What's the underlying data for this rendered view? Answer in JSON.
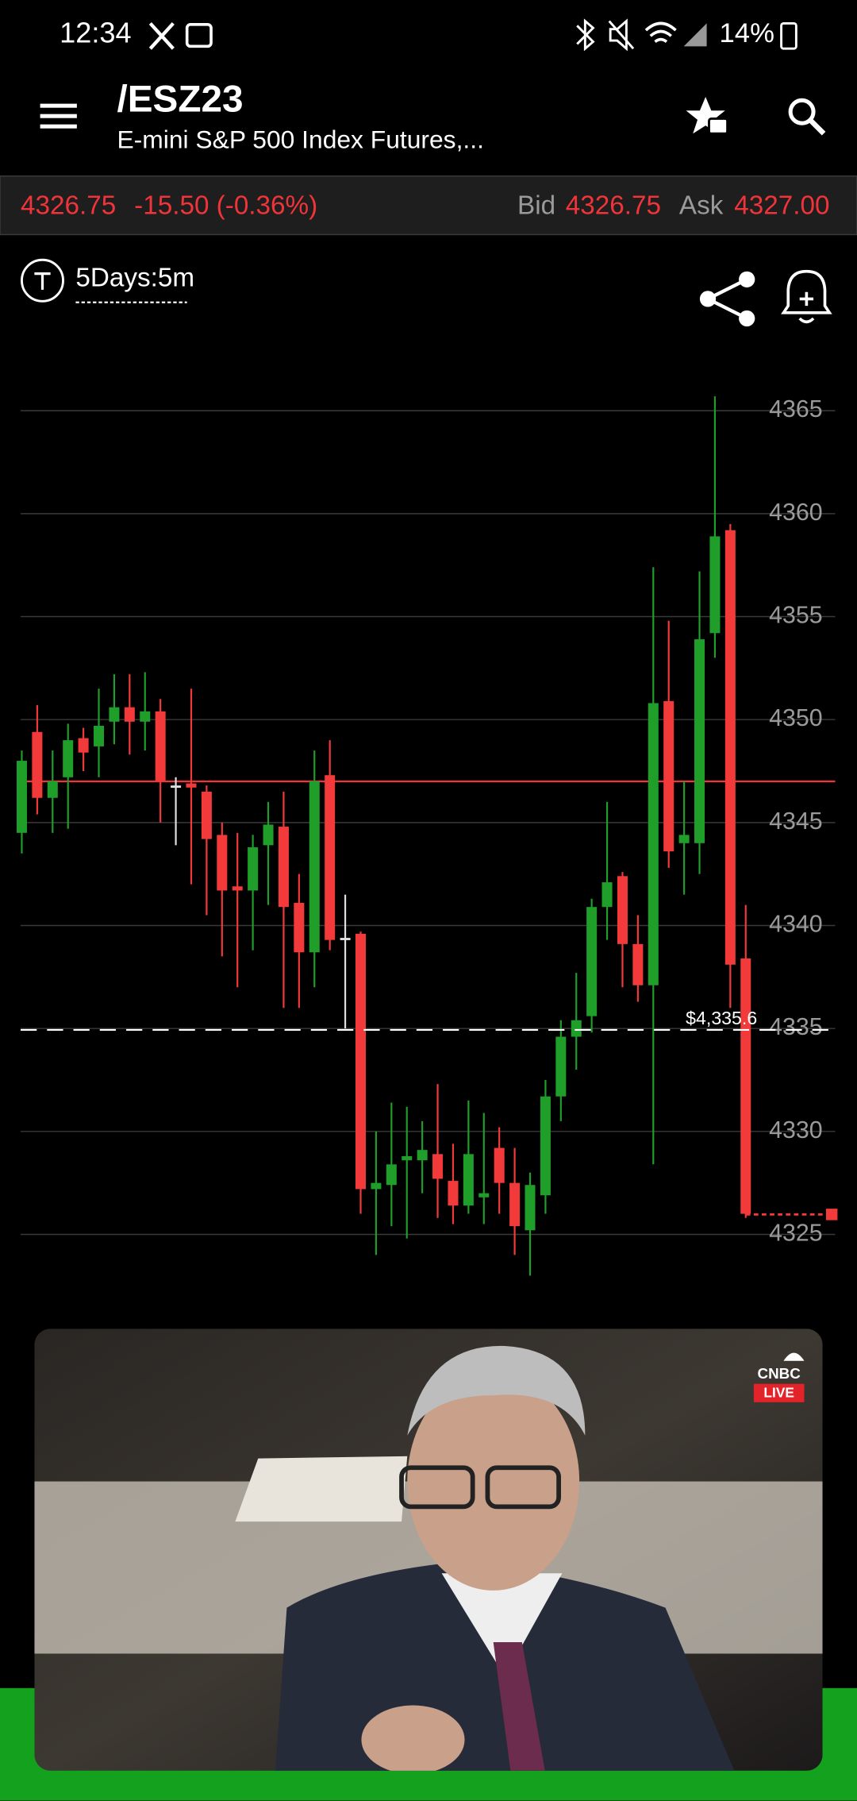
{
  "status_bar": {
    "time": "12:34",
    "battery": "14%"
  },
  "header": {
    "symbol": "/ESZ23",
    "name": "E-mini S&P 500 Index Futures,..."
  },
  "quote": {
    "last": "4326.75",
    "change": "-15.50 (-0.36%)",
    "bid_label": "Bid",
    "bid": "4326.75",
    "ask_label": "Ask",
    "ask": "4327.00"
  },
  "timeframe": "5Days:5m",
  "chart_data": {
    "type": "candlestick",
    "ylim": [
      4318.3,
      4368.2
    ],
    "yticks": [
      4325,
      4330,
      4335,
      4340,
      4345,
      4350,
      4355,
      4360,
      4365
    ],
    "grid": true,
    "up_color": "#1f9e2a",
    "down_color": "#f23a3a",
    "doji_color": "#e0e0e0",
    "open": [
      4344.5,
      4349.4,
      4346.2,
      4347.2,
      4349.1,
      4348.7,
      4349.9,
      4350.6,
      4349.9,
      4350.4,
      4346.8,
      4346.9,
      4346.5,
      4344.4,
      4341.9,
      4341.7,
      4343.9,
      4344.8,
      4341.1,
      4338.7,
      4347.3,
      4339.4,
      4339.6,
      4327.2,
      4327.4,
      4328.6,
      4328.6,
      4328.9,
      4327.6,
      4326.4,
      4326.8,
      4329.2,
      4327.5,
      4325.2,
      4326.9,
      4331.7,
      4334.6,
      4335.6,
      4340.9,
      4342.4,
      4339.1,
      4337.1,
      4350.9,
      4344.0,
      4344.0,
      4354.2,
      4359.2,
      4338.4
    ],
    "high": [
      4348.5,
      4350.7,
      4348.5,
      4349.8,
      4349.6,
      4351.5,
      4352.2,
      4352.2,
      4352.3,
      4351.0,
      4347.2,
      4351.5,
      4346.8,
      4345,
      4344.5,
      4344.4,
      4346,
      4346.5,
      4342.5,
      4348.5,
      4349.0,
      4341.5,
      4339.7,
      4330,
      4331.4,
      4331.2,
      4330.5,
      4332.3,
      4329.4,
      4331.5,
      4330.9,
      4330.2,
      4329.2,
      4328,
      4332.5,
      4335.4,
      4337.7,
      4341.3,
      4346,
      4342.6,
      4340.5,
      4357.4,
      4354.8,
      4347,
      4357.2,
      4365.7,
      4359.5,
      4341.0
    ],
    "low": [
      4343.5,
      4345.4,
      4344.5,
      4344.7,
      4347.5,
      4347.2,
      4348.8,
      4348.3,
      4348.5,
      4345.0,
      4343.9,
      4342,
      4340.5,
      4338.5,
      4337,
      4338.8,
      4341,
      4336,
      4336,
      4337,
      4338.8,
      4335.0,
      4326,
      4324,
      4325.4,
      4324.8,
      4327,
      4325.8,
      4325.5,
      4326,
      4325.5,
      4326,
      4324,
      4323,
      4326,
      4330.5,
      4333,
      4334.8,
      4339.3,
      4337,
      4336.3,
      4328.4,
      4342.8,
      4341.5,
      4342.5,
      4353,
      4336,
      4325.8
    ],
    "close": [
      4348,
      4346.2,
      4347.0,
      4349.0,
      4348.4,
      4349.7,
      4350.6,
      4349.9,
      4350.4,
      4347.0,
      4346.8,
      4346.7,
      4344.2,
      4341.7,
      4341.7,
      4343.8,
      4344.9,
      4340.9,
      4338.7,
      4347.0,
      4339.3,
      4339.4,
      4327.2,
      4327.5,
      4328.4,
      4328.8,
      4329.1,
      4327.7,
      4326.4,
      4328.9,
      4327.0,
      4327.5,
      4325.4,
      4327.4,
      4331.7,
      4334.6,
      4335.4,
      4340.9,
      4342.1,
      4339.1,
      4337.1,
      4350.8,
      4343.6,
      4344.4,
      4353.9,
      4358.9,
      4338.1,
      4326.0
    ],
    "reference_line": 4347.0,
    "marker_line": {
      "value": 4335.6,
      "label": "$4,335.6"
    },
    "last_price": 4326.75
  },
  "video": {
    "badge": "CNBC",
    "live": "LIVE"
  }
}
